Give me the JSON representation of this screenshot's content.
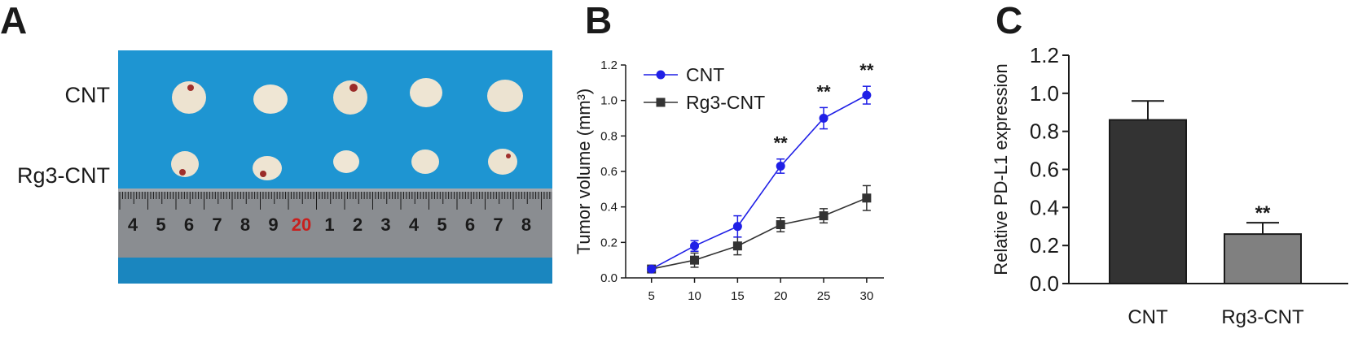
{
  "panels": {
    "a": {
      "letter": "A",
      "row_labels": [
        "CNT",
        "Rg3-CNT"
      ]
    },
    "b": {
      "letter": "B"
    },
    "c": {
      "letter": "C"
    }
  },
  "ruler": {
    "numbers": [
      "4",
      "5",
      "6",
      "7",
      "8",
      "9",
      "20",
      "1",
      "2",
      "3",
      "4",
      "5",
      "6",
      "7",
      "8"
    ],
    "highlight": "20",
    "highlight_color": "#c8201e"
  },
  "colors": {
    "blue": "#1f1fe6",
    "dark": "#333333",
    "photo_bg": "#1e95d2",
    "bar1": "#333333",
    "bar2": "#808080"
  },
  "chart_data": [
    {
      "type": "line",
      "x": [
        5,
        10,
        15,
        20,
        25,
        30
      ],
      "xlim": [
        2,
        32
      ],
      "ylim": [
        0,
        1.2
      ],
      "yticks": [
        "0.0",
        "0.2",
        "0.4",
        "0.6",
        "0.8",
        "1.0",
        "1.2"
      ],
      "xticks": [
        "5",
        "10",
        "15",
        "20",
        "25",
        "30"
      ],
      "ylabel": "Tumor volume (mm³)",
      "legend_position": "top-left",
      "series": [
        {
          "name": "CNT",
          "marker": "circle",
          "color": "#1f1fe6",
          "values": [
            0.05,
            0.18,
            0.29,
            0.63,
            0.9,
            1.03
          ],
          "errors": [
            0.01,
            0.03,
            0.06,
            0.04,
            0.06,
            0.05
          ]
        },
        {
          "name": "Rg3-CNT",
          "marker": "square",
          "color": "#333333",
          "values": [
            0.05,
            0.1,
            0.18,
            0.3,
            0.35,
            0.45
          ],
          "errors": [
            0.01,
            0.04,
            0.05,
            0.04,
            0.04,
            0.07
          ]
        }
      ],
      "annotations": [
        {
          "x": 20,
          "text": "**"
        },
        {
          "x": 25,
          "text": "**"
        },
        {
          "x": 30,
          "text": "**"
        }
      ]
    },
    {
      "type": "bar",
      "categories": [
        "CNT",
        "Rg3-CNT"
      ],
      "values": [
        0.86,
        0.26
      ],
      "errors": [
        0.1,
        0.06
      ],
      "ylim": [
        0,
        1.2
      ],
      "yticks": [
        "0.0",
        "0.2",
        "0.4",
        "0.6",
        "0.8",
        "1.0",
        "1.2"
      ],
      "ylabel": "Relative PD-L1 expression",
      "annotations": [
        {
          "category": "Rg3-CNT",
          "text": "**"
        }
      ]
    }
  ]
}
